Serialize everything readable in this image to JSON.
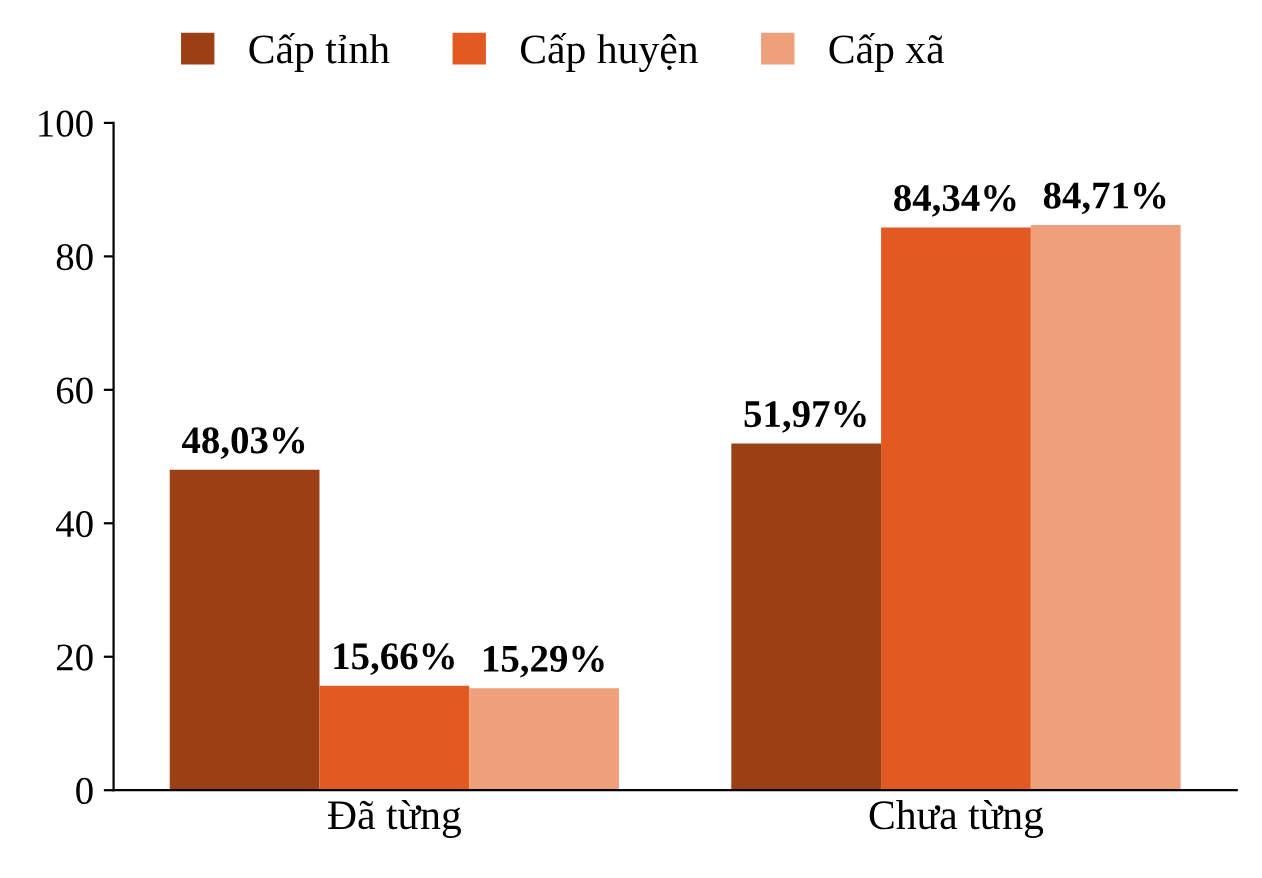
{
  "chart_data": {
    "type": "bar",
    "categories": [
      "Đã từng",
      "Chưa từng"
    ],
    "series": [
      {
        "name": "Cấp tỉnh",
        "color": "#9c3f14",
        "values": [
          48.03,
          51.97
        ],
        "value_labels": [
          "48,03%",
          "51,97%"
        ]
      },
      {
        "name": "Cấp huyện",
        "color": "#e25a22",
        "values": [
          15.66,
          84.34
        ],
        "value_labels": [
          "15,66%",
          "84,34%"
        ]
      },
      {
        "name": "Cấp xã",
        "color": "#eea07a",
        "values": [
          15.29,
          84.71
        ],
        "value_labels": [
          "15,29%",
          "84,71%"
        ]
      }
    ],
    "ylim": [
      0,
      100
    ],
    "yticks": [
      0,
      20,
      40,
      60,
      80,
      100
    ],
    "grid": false,
    "legend": "top"
  }
}
